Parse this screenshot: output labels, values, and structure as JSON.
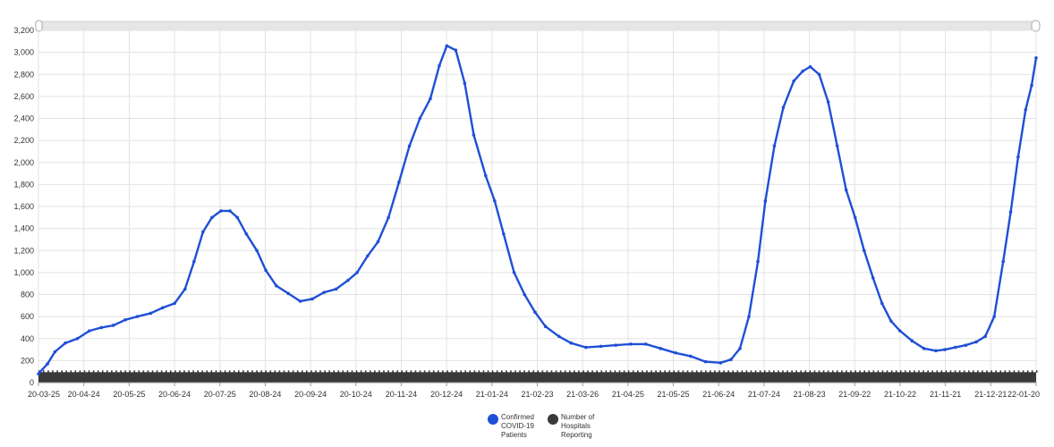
{
  "chart_data": {
    "type": "line",
    "title": "",
    "xlabel": "",
    "ylabel": "",
    "ylim": [
      0,
      3200
    ],
    "y_ticks": [
      "0",
      "200",
      "400",
      "600",
      "800",
      "1,000",
      "1,200",
      "1,400",
      "1,600",
      "1,800",
      "2,000",
      "2,200",
      "2,400",
      "2,600",
      "2,800",
      "3,000",
      "3,200"
    ],
    "x_tick_labels": [
      "20-03-25",
      "20-04-24",
      "20-05-25",
      "20-06-24",
      "20-07-25",
      "20-08-24",
      "20-09-24",
      "20-10-24",
      "20-11-24",
      "20-12-24",
      "21-01-24",
      "21-02-23",
      "21-03-26",
      "21-04-25",
      "21-05-25",
      "21-06-24",
      "21-07-24",
      "21-08-23",
      "21-09-22",
      "21-10-22",
      "21-11-21",
      "21-12-21",
      "22-01-20"
    ],
    "x_start": "2020-03-25",
    "x_end": "2022-01-21",
    "grid": true,
    "legend_position": "bottom-center",
    "series": [
      {
        "name": "Confirmed COVID-19 Patients",
        "color": "#1f4fd6",
        "points": [
          [
            "2020-03-25",
            80
          ],
          [
            "2020-03-31",
            170
          ],
          [
            "2020-04-05",
            280
          ],
          [
            "2020-04-12",
            360
          ],
          [
            "2020-04-20",
            400
          ],
          [
            "2020-04-28",
            470
          ],
          [
            "2020-05-06",
            500
          ],
          [
            "2020-05-14",
            520
          ],
          [
            "2020-05-22",
            570
          ],
          [
            "2020-05-30",
            600
          ],
          [
            "2020-06-08",
            630
          ],
          [
            "2020-06-16",
            680
          ],
          [
            "2020-06-24",
            720
          ],
          [
            "2020-07-01",
            850
          ],
          [
            "2020-07-07",
            1100
          ],
          [
            "2020-07-13",
            1370
          ],
          [
            "2020-07-19",
            1500
          ],
          [
            "2020-07-25",
            1560
          ],
          [
            "2020-07-31",
            1560
          ],
          [
            "2020-08-05",
            1500
          ],
          [
            "2020-08-11",
            1350
          ],
          [
            "2020-08-18",
            1200
          ],
          [
            "2020-08-24",
            1020
          ],
          [
            "2020-08-31",
            880
          ],
          [
            "2020-09-08",
            810
          ],
          [
            "2020-09-16",
            740
          ],
          [
            "2020-09-24",
            760
          ],
          [
            "2020-10-02",
            820
          ],
          [
            "2020-10-10",
            850
          ],
          [
            "2020-10-18",
            930
          ],
          [
            "2020-10-24",
            1000
          ],
          [
            "2020-10-31",
            1150
          ],
          [
            "2020-11-07",
            1280
          ],
          [
            "2020-11-14",
            1500
          ],
          [
            "2020-11-21",
            1820
          ],
          [
            "2020-11-28",
            2150
          ],
          [
            "2020-12-05",
            2400
          ],
          [
            "2020-12-12",
            2580
          ],
          [
            "2020-12-18",
            2880
          ],
          [
            "2020-12-23",
            3060
          ],
          [
            "2020-12-29",
            3020
          ],
          [
            "2021-01-04",
            2720
          ],
          [
            "2021-01-10",
            2250
          ],
          [
            "2021-01-18",
            1880
          ],
          [
            "2021-01-24",
            1650
          ],
          [
            "2021-01-30",
            1350
          ],
          [
            "2021-02-06",
            1000
          ],
          [
            "2021-02-13",
            800
          ],
          [
            "2021-02-20",
            640
          ],
          [
            "2021-02-27",
            510
          ],
          [
            "2021-03-08",
            420
          ],
          [
            "2021-03-16",
            360
          ],
          [
            "2021-03-26",
            320
          ],
          [
            "2021-04-05",
            330
          ],
          [
            "2021-04-15",
            340
          ],
          [
            "2021-04-25",
            350
          ],
          [
            "2021-05-05",
            350
          ],
          [
            "2021-05-15",
            310
          ],
          [
            "2021-05-25",
            270
          ],
          [
            "2021-06-04",
            240
          ],
          [
            "2021-06-14",
            190
          ],
          [
            "2021-06-24",
            180
          ],
          [
            "2021-07-01",
            210
          ],
          [
            "2021-07-07",
            310
          ],
          [
            "2021-07-13",
            600
          ],
          [
            "2021-07-19",
            1100
          ],
          [
            "2021-07-24",
            1650
          ],
          [
            "2021-07-30",
            2150
          ],
          [
            "2021-08-05",
            2500
          ],
          [
            "2021-08-12",
            2740
          ],
          [
            "2021-08-18",
            2830
          ],
          [
            "2021-08-23",
            2870
          ],
          [
            "2021-08-29",
            2800
          ],
          [
            "2021-09-04",
            2550
          ],
          [
            "2021-09-10",
            2150
          ],
          [
            "2021-09-16",
            1750
          ],
          [
            "2021-09-22",
            1500
          ],
          [
            "2021-09-28",
            1200
          ],
          [
            "2021-10-04",
            950
          ],
          [
            "2021-10-10",
            720
          ],
          [
            "2021-10-16",
            560
          ],
          [
            "2021-10-22",
            470
          ],
          [
            "2021-10-30",
            380
          ],
          [
            "2021-11-07",
            310
          ],
          [
            "2021-11-15",
            290
          ],
          [
            "2021-11-21",
            300
          ],
          [
            "2021-11-28",
            320
          ],
          [
            "2021-12-05",
            340
          ],
          [
            "2021-12-12",
            370
          ],
          [
            "2021-12-18",
            420
          ],
          [
            "2021-12-24",
            600
          ],
          [
            "2021-12-30",
            1100
          ],
          [
            "2022-01-04",
            1550
          ],
          [
            "2022-01-09",
            2050
          ],
          [
            "2022-01-14",
            2480
          ],
          [
            "2022-01-18",
            2700
          ],
          [
            "2022-01-21",
            2950
          ]
        ]
      },
      {
        "name": "Number of Hospitals Reporting",
        "color": "#3a3a3a",
        "points": [
          [
            "2020-03-25",
            95
          ],
          [
            "2022-01-21",
            95
          ]
        ]
      }
    ]
  },
  "legend": {
    "items": [
      {
        "label": "Confirmed COVID-19 Patients",
        "color": "#1f4fd6"
      },
      {
        "label": "Number of Hospitals Reporting",
        "color": "#3a3a3a"
      }
    ]
  }
}
